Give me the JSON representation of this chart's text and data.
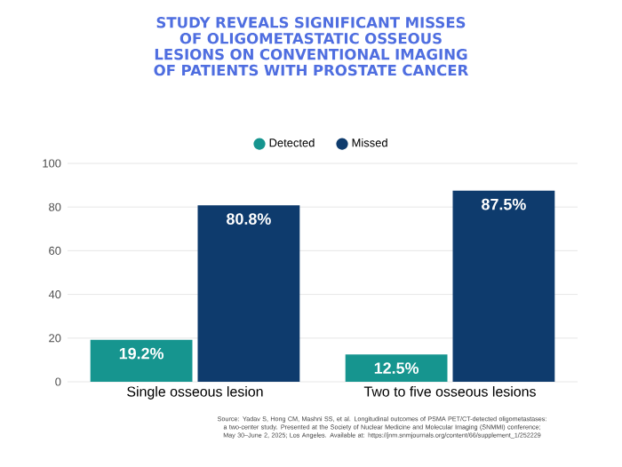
{
  "chart_data": {
    "type": "bar",
    "title": "STUDY REVEALS SIGNIFICANT MISSES OF OLIGOMETASTATIC OSSEOUS LESIONS ON CONVENTIONAL IMAGING OF PATIENTS WITH PROSTATE CANCER",
    "categories": [
      "Single osseous lesion",
      "Two to five osseous lesions"
    ],
    "series": [
      {
        "name": "Detected",
        "color": "#16958f",
        "values": [
          19.2,
          12.5
        ],
        "value_labels": [
          "19.2%",
          "12.5%"
        ]
      },
      {
        "name": "Missed",
        "color": "#0e3b6d",
        "values": [
          80.8,
          87.5
        ],
        "value_labels": [
          "80.8%",
          "87.5%"
        ]
      }
    ],
    "ylim": [
      0,
      100
    ],
    "yticks": [
      0,
      20,
      40,
      60,
      80,
      100
    ],
    "grid": "y",
    "legend": "top",
    "annotations": [
      "Source: Yadav S, Hong CM, Mashni SS, et al. Longitudinal outcomes of PSMA PET/CT-detected oligometastases: a two-center study. Presented at the Society of Nuclear Medicine and Molecular Imaging (SNMMI) conference; May 30–June 2, 2025; Los Angeles. Available at: https://jnm.snmjournals.org/content/66/supplement_1/252229"
    ]
  }
}
